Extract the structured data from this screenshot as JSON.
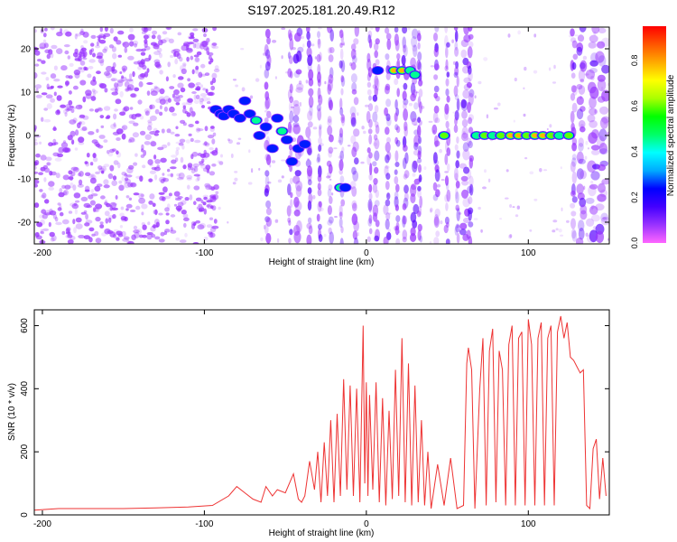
{
  "figure": {
    "title": "S197.2025.181.20.49.R12"
  },
  "chart_data": [
    {
      "type": "heatmap",
      "title": "S197.2025.181.20.49.R12",
      "xlabel": "Height of straight line (km)",
      "ylabel": "Frequency (Hz)",
      "xlim": [
        -205,
        150
      ],
      "ylim": [
        -25,
        25
      ],
      "xticks": [
        -200,
        -100,
        0,
        100
      ],
      "yticks": [
        -20,
        -10,
        0,
        10,
        20
      ],
      "colorbar": {
        "label": "Normalized spectral amplitude",
        "range": [
          0.0,
          0.95
        ],
        "ticks": [
          0.0,
          0.2,
          0.4,
          0.6,
          0.8
        ],
        "colors": [
          "#ff66ff",
          "#9933ff",
          "#4400ff",
          "#0000ff",
          "#00aaff",
          "#00ffff",
          "#00ff66",
          "#00ff00",
          "#aaff00",
          "#ffff00",
          "#ffaa00",
          "#ff5500",
          "#ff0000"
        ]
      },
      "background_noise": {
        "x_from": -205,
        "x_to": -92,
        "color": "#9933ff"
      },
      "blobs": [
        {
          "x": -93,
          "f": 6,
          "a": 0.25
        },
        {
          "x": -90,
          "f": 5,
          "a": 0.3
        },
        {
          "x": -88,
          "f": 4.5,
          "a": 0.35
        },
        {
          "x": -85,
          "f": 6,
          "a": 0.3
        },
        {
          "x": -82,
          "f": 5,
          "a": 0.28
        },
        {
          "x": -78,
          "f": 4,
          "a": 0.4
        },
        {
          "x": -75,
          "f": 8,
          "a": 0.3
        },
        {
          "x": -72,
          "f": 5,
          "a": 0.35
        },
        {
          "x": -68,
          "f": 3.5,
          "a": 0.45
        },
        {
          "x": -66,
          "f": 0,
          "a": 0.35
        },
        {
          "x": -62,
          "f": 2,
          "a": 0.4
        },
        {
          "x": -58,
          "f": -3,
          "a": 0.35
        },
        {
          "x": -55,
          "f": 4,
          "a": 0.3
        },
        {
          "x": -52,
          "f": 1,
          "a": 0.45
        },
        {
          "x": -49,
          "f": -1,
          "a": 0.4
        },
        {
          "x": -46,
          "f": -6,
          "a": 0.35
        },
        {
          "x": -42,
          "f": -3,
          "a": 0.4
        },
        {
          "x": -38,
          "f": -2,
          "a": 0.35
        },
        {
          "x": -16,
          "f": -12,
          "a": 0.5
        },
        {
          "x": -13,
          "f": -12,
          "a": 0.4
        },
        {
          "x": 7,
          "f": 15,
          "a": 0.4
        },
        {
          "x": 17,
          "f": 15,
          "a": 0.85
        },
        {
          "x": 22,
          "f": 15,
          "a": 0.8
        },
        {
          "x": 27,
          "f": 15,
          "a": 0.5
        },
        {
          "x": 30,
          "f": 14,
          "a": 0.45
        },
        {
          "x": 48,
          "f": 0,
          "a": 0.6
        },
        {
          "x": 68,
          "f": 0,
          "a": 0.55
        },
        {
          "x": 73,
          "f": 0,
          "a": 0.6
        },
        {
          "x": 78,
          "f": 0,
          "a": 0.55
        },
        {
          "x": 83,
          "f": 0,
          "a": 0.6
        },
        {
          "x": 89,
          "f": 0,
          "a": 0.8
        },
        {
          "x": 94,
          "f": 0,
          "a": 0.85
        },
        {
          "x": 99,
          "f": 0,
          "a": 0.6
        },
        {
          "x": 104,
          "f": 0,
          "a": 0.85
        },
        {
          "x": 109,
          "f": 0,
          "a": 0.85
        },
        {
          "x": 114,
          "f": 0,
          "a": 0.6
        },
        {
          "x": 119,
          "f": 0,
          "a": 0.55
        },
        {
          "x": 125,
          "f": 0,
          "a": 0.6
        }
      ],
      "stripes": [
        {
          "x": -61,
          "w": 2
        },
        {
          "x": -47,
          "w": 1.5
        },
        {
          "x": -42,
          "w": 3
        },
        {
          "x": -35,
          "w": 2
        },
        {
          "x": -29,
          "w": 1.5
        },
        {
          "x": -22,
          "w": 2
        },
        {
          "x": -15,
          "w": 1.5
        },
        {
          "x": -7,
          "w": 2.5
        },
        {
          "x": 2,
          "w": 1.5
        },
        {
          "x": 6,
          "w": 2
        },
        {
          "x": 13,
          "w": 2
        },
        {
          "x": 19,
          "w": 1.5
        },
        {
          "x": 24,
          "w": 2
        },
        {
          "x": 30,
          "w": 2.5
        },
        {
          "x": 33,
          "w": 1.5
        },
        {
          "x": 43,
          "w": 2
        },
        {
          "x": 50,
          "w": 1.5
        },
        {
          "x": 56,
          "w": 1.5
        },
        {
          "x": 61,
          "w": 3
        },
        {
          "x": 64,
          "w": 2
        },
        {
          "x": 128,
          "w": 2
        },
        {
          "x": 133,
          "w": 3
        },
        {
          "x": 140,
          "w": 4
        },
        {
          "x": 146,
          "w": 4
        }
      ]
    },
    {
      "type": "line",
      "xlabel": "Height of straight line (km)",
      "ylabel": "SNR (10 * v/v)",
      "xlim": [
        -205,
        150
      ],
      "ylim": [
        0,
        650
      ],
      "xticks": [
        -200,
        -100,
        0,
        100
      ],
      "yticks": [
        0,
        200,
        400,
        600
      ],
      "grid": false,
      "line_color": "#ee3333",
      "series": [
        {
          "x": [
            -205,
            -190,
            -170,
            -150,
            -130,
            -110,
            -95,
            -85,
            -80,
            -75,
            -70,
            -65,
            -62,
            -58,
            -55,
            -50,
            -45,
            -42,
            -40,
            -38,
            -35,
            -32,
            -30,
            -28,
            -26,
            -24,
            -22,
            -20,
            -18,
            -16,
            -14,
            -12,
            -10,
            -8,
            -6,
            -4,
            -2,
            -1,
            0,
            1,
            2,
            4,
            6,
            8,
            10,
            12,
            14,
            16,
            18,
            20,
            22,
            24,
            26,
            28,
            30,
            32,
            34,
            36,
            38,
            40,
            44,
            48,
            52,
            56,
            60,
            62,
            63,
            65,
            67,
            70,
            72,
            74,
            76,
            78,
            80,
            82,
            84,
            86,
            88,
            90,
            92,
            94,
            96,
            98,
            100,
            102,
            104,
            106,
            108,
            110,
            112,
            114,
            116,
            118,
            120,
            122,
            124,
            126,
            128,
            130,
            132,
            134,
            136,
            138,
            140,
            142,
            144,
            146,
            148
          ],
          "y": [
            15,
            20,
            20,
            20,
            22,
            25,
            30,
            60,
            90,
            70,
            50,
            40,
            90,
            60,
            80,
            70,
            130,
            50,
            40,
            60,
            170,
            80,
            200,
            40,
            230,
            60,
            300,
            40,
            320,
            60,
            430,
            80,
            410,
            60,
            400,
            40,
            600,
            100,
            420,
            60,
            380,
            80,
            420,
            40,
            370,
            30,
            330,
            50,
            460,
            60,
            560,
            40,
            480,
            30,
            410,
            40,
            300,
            30,
            200,
            20,
            160,
            30,
            180,
            20,
            30,
            480,
            530,
            460,
            20,
            400,
            560,
            30,
            520,
            590,
            40,
            520,
            460,
            30,
            540,
            600,
            30,
            560,
            580,
            30,
            620,
            540,
            30,
            560,
            610,
            30,
            560,
            600,
            30,
            580,
            630,
            560,
            610,
            500,
            490,
            470,
            450,
            460,
            30,
            20,
            210,
            240,
            50,
            180,
            60
          ]
        }
      ]
    }
  ]
}
